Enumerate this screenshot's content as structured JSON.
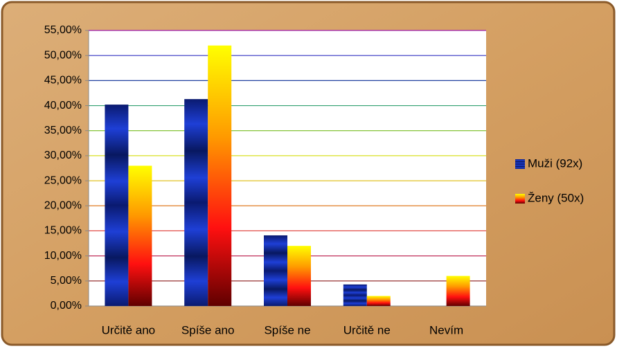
{
  "chart_data": {
    "type": "bar",
    "categories": [
      "Určitě ano",
      "Spíše ano",
      "Spíše ne",
      "Určitě ne",
      "Nevím"
    ],
    "series": [
      {
        "name": "Muži (92x)",
        "color": "#1e3fd6",
        "values": [
          40.2,
          41.3,
          14.1,
          4.3,
          0
        ]
      },
      {
        "name": "Ženy (50x)",
        "color": "#ff9a00",
        "values": [
          28,
          52,
          12,
          2,
          6
        ]
      }
    ],
    "ylim": [
      0,
      55
    ],
    "yticks": [
      {
        "value": 0,
        "label": "0,00%"
      },
      {
        "value": 5,
        "label": "5,00%"
      },
      {
        "value": 10,
        "label": "10,00%"
      },
      {
        "value": 15,
        "label": "15,00%"
      },
      {
        "value": 20,
        "label": "20,00%"
      },
      {
        "value": 25,
        "label": "25,00%"
      },
      {
        "value": 30,
        "label": "30,00%"
      },
      {
        "value": 35,
        "label": "35,00%"
      },
      {
        "value": 40,
        "label": "40,00%"
      },
      {
        "value": 45,
        "label": "45,00%"
      },
      {
        "value": 50,
        "label": "50,00%"
      },
      {
        "value": 55,
        "label": "55,00%"
      }
    ],
    "grid": true,
    "grid_colors": [
      "#999999",
      "#8b1a1a",
      "#c0305a",
      "#e0403a",
      "#e07a20",
      "#e0c020",
      "#d8e020",
      "#80c030",
      "#30a070",
      "#2040a0",
      "#3030c0",
      "#a020b0"
    ],
    "legend": "right"
  }
}
